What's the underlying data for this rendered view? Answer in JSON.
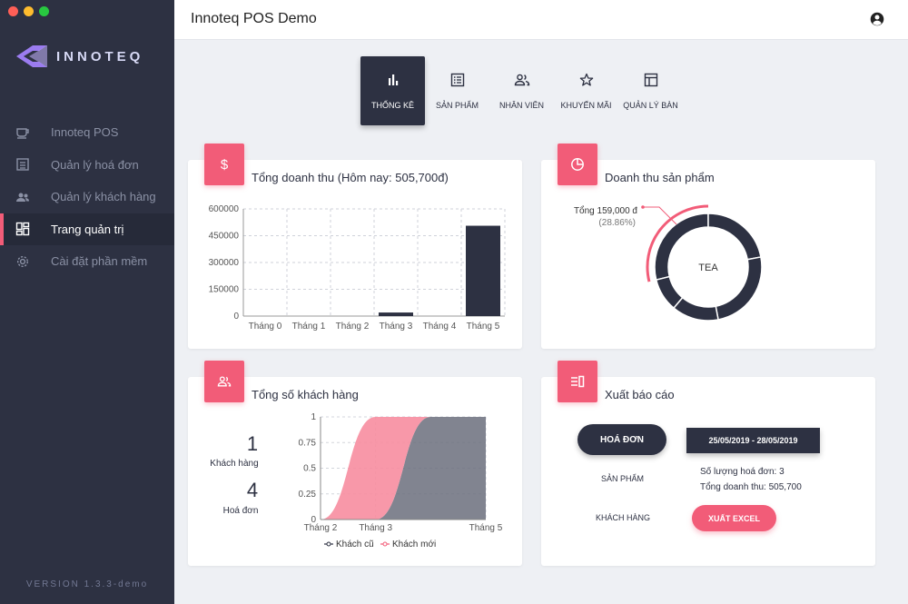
{
  "window": {
    "controls": [
      "#ff5f57",
      "#febc2e",
      "#28c840"
    ]
  },
  "sidebar": {
    "logo_text": "INNOTEQ",
    "items": [
      {
        "label": "Innoteq POS",
        "icon": "cup-icon"
      },
      {
        "label": "Quản lý hoá đơn",
        "icon": "receipt-icon"
      },
      {
        "label": "Quản lý khách hàng",
        "icon": "users-icon"
      },
      {
        "label": "Trang quản trị",
        "icon": "dashboard-icon",
        "active": true
      },
      {
        "label": "Cài đặt phần mềm",
        "icon": "gear-icon"
      }
    ],
    "version": "VERSION 1.3.3-demo"
  },
  "header": {
    "title": "Innoteq POS Demo"
  },
  "tabs": [
    {
      "label": "THỐNG KÊ",
      "icon": "bar-chart-icon",
      "active": true
    },
    {
      "label": "SẢN PHẨM",
      "icon": "list-icon"
    },
    {
      "label": "NHÂN VIÊN",
      "icon": "people-icon"
    },
    {
      "label": "KHUYẾN MÃI",
      "icon": "star-icon"
    },
    {
      "label": "QUẢN LÝ BÀN",
      "icon": "table-icon"
    }
  ],
  "revenue_card": {
    "title": "Tổng doanh thu (Hôm nay: 505,700đ)"
  },
  "product_card": {
    "title": "Doanh thu sản phẩm",
    "tooltip_line1": "Tổng 159,000 đ",
    "tooltip_line2": "(28.86%)",
    "center_label": "TEA"
  },
  "customer_card": {
    "title": "Tổng số khách hàng",
    "customers_count": "1",
    "customers_label": "Khách hàng",
    "invoices_count": "4",
    "invoices_label": "Hoá đơn"
  },
  "report_card": {
    "title": "Xuất báo cáo",
    "invoice_button": "HOÁ ĐƠN",
    "date_range": "25/05/2019 - 28/05/2019",
    "products_link": "SẢN PHẨM",
    "customers_link": "KHÁCH HÀNG",
    "invoice_count_text": "Số lượng hoá đơn: 3",
    "revenue_total_text": "Tổng doanh thu: 505,700",
    "export_button": "XUẤT EXCEL"
  },
  "colors": {
    "dark": "#2d3142",
    "accent": "#f25c78",
    "grey_fill": "#6b6e7d",
    "pink_fill": "#f78da0"
  },
  "chart_data": [
    {
      "type": "bar",
      "categories": [
        "Tháng 0",
        "Tháng 1",
        "Tháng 2",
        "Tháng 3",
        "Tháng 4",
        "Tháng 5"
      ],
      "values": [
        0,
        0,
        0,
        20000,
        0,
        505700
      ],
      "ylim": [
        0,
        600000
      ],
      "yticks": [
        0,
        150000,
        300000,
        450000,
        600000
      ],
      "grid": true
    },
    {
      "type": "pie",
      "variant": "donut",
      "slices": [
        {
          "label": "TEA",
          "value": 159000,
          "percent": 28.86
        },
        {
          "label": "",
          "percent": 22
        },
        {
          "label": "",
          "percent": 25
        },
        {
          "label": "",
          "percent": 14.14
        },
        {
          "label": "",
          "percent": 10
        }
      ]
    },
    {
      "type": "area",
      "x_labels": [
        "Tháng 2",
        "Tháng 3",
        "Tháng 5"
      ],
      "x_positions": [
        2,
        3,
        5
      ],
      "xlim": [
        2,
        5
      ],
      "ylim": [
        0,
        1
      ],
      "yticks": [
        0,
        0.25,
        0.5,
        0.75,
        1
      ],
      "series": [
        {
          "name": "Khách cũ",
          "x": [
            2,
            3,
            4,
            5
          ],
          "y": [
            0,
            0,
            1,
            1
          ]
        },
        {
          "name": "Khách mới",
          "x": [
            2,
            3,
            5
          ],
          "y": [
            0,
            1,
            1
          ]
        }
      ],
      "legend": "bottom",
      "grid": true
    }
  ]
}
